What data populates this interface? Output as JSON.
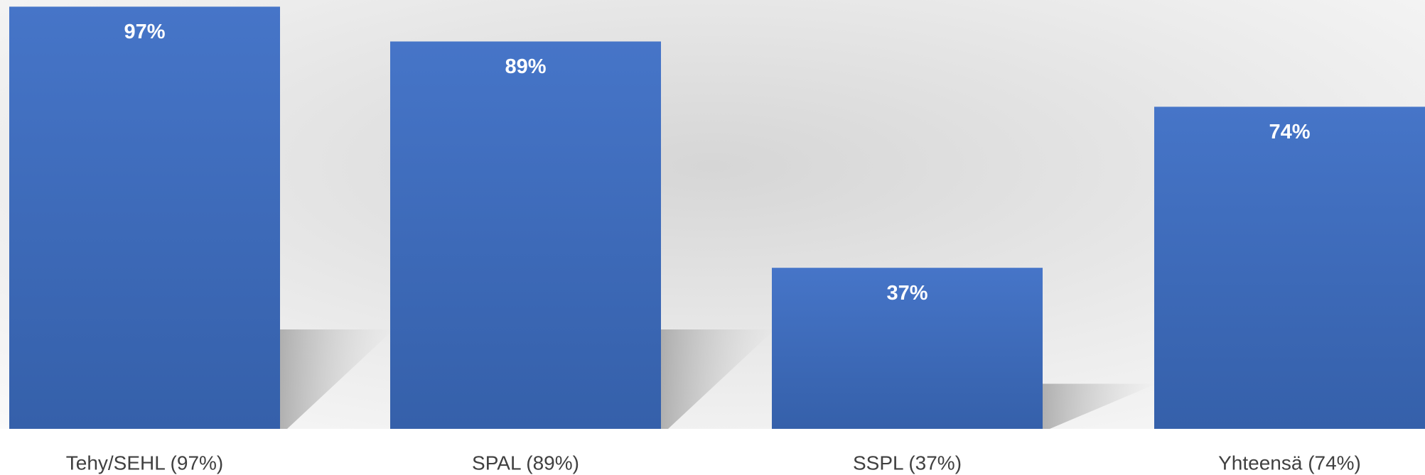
{
  "chart_data": {
    "type": "bar",
    "categories": [
      "Tehy/SEHL (97%)",
      "SPAL (89%)",
      "SSPL (37%)",
      "Yhteensä (74%)"
    ],
    "values": [
      97,
      89,
      37,
      74
    ],
    "value_labels": [
      "97%",
      "89%",
      "37%",
      "74%"
    ],
    "color": "#4472c4",
    "ylim": [
      0,
      100
    ]
  }
}
